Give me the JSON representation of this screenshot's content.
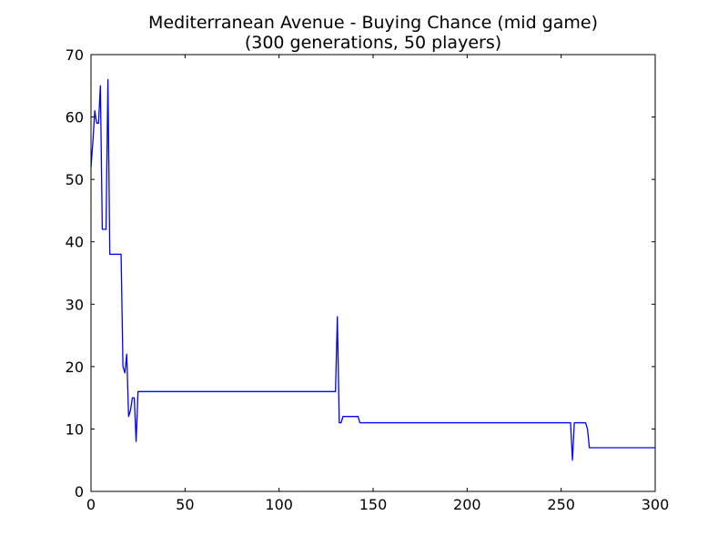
{
  "chart_data": {
    "type": "line",
    "title": "Mediterranean Avenue - Buying Chance (mid game)",
    "subtitle": "(300 generations, 50 players)",
    "xlabel": "",
    "ylabel": "",
    "xlim": [
      0,
      300
    ],
    "ylim": [
      0,
      70
    ],
    "xticks": [
      0,
      50,
      100,
      150,
      200,
      250,
      300
    ],
    "yticks": [
      0,
      10,
      20,
      30,
      40,
      50,
      60,
      70
    ],
    "grid": false,
    "line_color": "#0000ff",
    "series": [
      {
        "points": [
          [
            0,
            52
          ],
          [
            1,
            56
          ],
          [
            2,
            61
          ],
          [
            3,
            59
          ],
          [
            4,
            59
          ],
          [
            5,
            65
          ],
          [
            6,
            42
          ],
          [
            7,
            42
          ],
          [
            8,
            42
          ],
          [
            9,
            66
          ],
          [
            10,
            38
          ],
          [
            11,
            38
          ],
          [
            16,
            38
          ],
          [
            17,
            20
          ],
          [
            18,
            19
          ],
          [
            19,
            22
          ],
          [
            20,
            12
          ],
          [
            21,
            13
          ],
          [
            22,
            15
          ],
          [
            23,
            15
          ],
          [
            24,
            8
          ],
          [
            25,
            16
          ],
          [
            30,
            16
          ],
          [
            130,
            16
          ],
          [
            131,
            28
          ],
          [
            132,
            11
          ],
          [
            133,
            11
          ],
          [
            134,
            12
          ],
          [
            142,
            12
          ],
          [
            143,
            11
          ],
          [
            144,
            11
          ],
          [
            255,
            11
          ],
          [
            256,
            5
          ],
          [
            257,
            11
          ],
          [
            263,
            11
          ],
          [
            264,
            10
          ],
          [
            265,
            7
          ],
          [
            300,
            7
          ]
        ]
      }
    ]
  }
}
